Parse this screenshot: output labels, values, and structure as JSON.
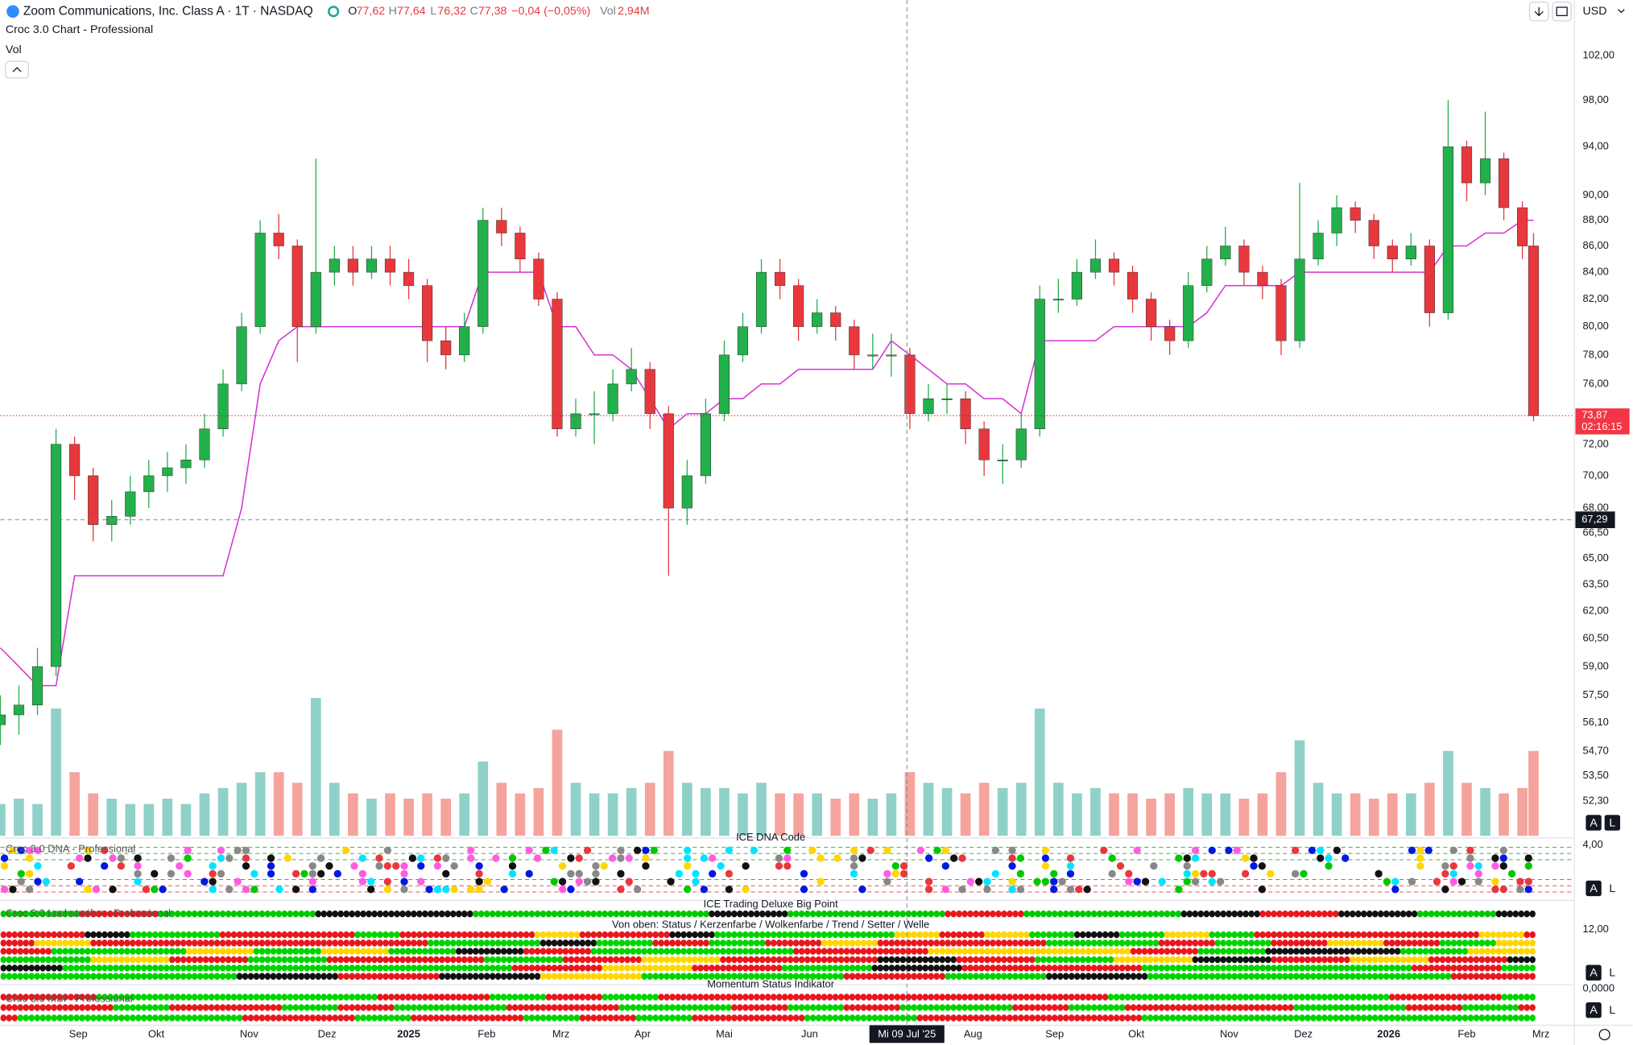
{
  "header": {
    "symbol": "Zoom Communications, Inc. Class A · 1T · NASDAQ",
    "ohlc": [
      {
        "key": "O",
        "text": "77,62"
      },
      {
        "key": "H",
        "text": "77,64"
      },
      {
        "key": "L",
        "text": "76,32"
      },
      {
        "key": "C",
        "text": "77,38"
      }
    ],
    "change": "−0,04 (−0,05%)",
    "vol_key": "Vol",
    "vol_text": "2,94M",
    "indicator": "Croc 3.0 Chart - Professional",
    "volume_label": "Vol",
    "currency": "USD"
  },
  "indicators": {
    "dna_title": "Croc 3.0 DNA - Professional",
    "dna_subtitle": "ICE DNA Code",
    "dna_scale": "4,00",
    "big_point": "ICE Trading Deluxe Big Point",
    "lochstreifen": "Croc 3.0 Lochstreifen - Professional",
    "rows_note": "Von oben: Status / Kerzenfarbe / Wolkenfarbe / Trend / Setter / Welle",
    "loch_scale": "12,00",
    "momentum": "Momentum Status Indikator",
    "msi_title": "Croc 3.0 MSI - Professional",
    "msi_scale": "0,0000",
    "button_a": "A",
    "button_l": "L"
  },
  "chart_data": {
    "type": "candlestick",
    "log_scale": true,
    "grid": false,
    "up_color": "#22b04b",
    "down_color": "#e8383d",
    "volume_up_color": "#8fd1c8",
    "volume_down_color": "#f5a39d",
    "xlim": [
      0,
      424
    ],
    "xticks": [
      {
        "value": 21,
        "label": "Sep"
      },
      {
        "value": 42,
        "label": "Okt"
      },
      {
        "value": 67,
        "label": "Nov"
      },
      {
        "value": 88,
        "label": "Dez"
      },
      {
        "value": 110,
        "label": "2025"
      },
      {
        "value": 131,
        "label": "Feb"
      },
      {
        "value": 151,
        "label": "Mrz"
      },
      {
        "value": 173,
        "label": "Apr"
      },
      {
        "value": 195,
        "label": "Mai"
      },
      {
        "value": 218,
        "label": "Jun"
      },
      {
        "value": 262,
        "label": "Aug"
      },
      {
        "value": 284,
        "label": "Sep"
      },
      {
        "value": 306,
        "label": "Okt"
      },
      {
        "value": 331,
        "label": "Nov"
      },
      {
        "value": 351,
        "label": "Dez"
      },
      {
        "value": 374,
        "label": "2026"
      },
      {
        "value": 395,
        "label": "Feb"
      },
      {
        "value": 415,
        "label": "Mrz"
      }
    ],
    "ylim": [
      50.7,
      107.2
    ],
    "yticks": [
      {
        "value": 102,
        "label": "102,00"
      },
      {
        "value": 98,
        "label": "98,00"
      },
      {
        "value": 94,
        "label": "94,00"
      },
      {
        "value": 90,
        "label": "90,00"
      },
      {
        "value": 88,
        "label": "88,00"
      },
      {
        "value": 86,
        "label": "86,00"
      },
      {
        "value": 84,
        "label": "84,00"
      },
      {
        "value": 82,
        "label": "82,00"
      },
      {
        "value": 80,
        "label": "80,00"
      },
      {
        "value": 78,
        "label": "78,00"
      },
      {
        "value": 76,
        "label": "76,00"
      },
      {
        "value": 72,
        "label": "72,00"
      },
      {
        "value": 70,
        "label": "70,00"
      },
      {
        "value": 68,
        "label": "68,00"
      },
      {
        "value": 66.5,
        "label": "66,50"
      },
      {
        "value": 65,
        "label": "65,00"
      },
      {
        "value": 63.5,
        "label": "63,50"
      },
      {
        "value": 62,
        "label": "62,00"
      },
      {
        "value": 60.5,
        "label": "60,50"
      },
      {
        "value": 59,
        "label": "59,00"
      },
      {
        "value": 57.5,
        "label": "57,50"
      },
      {
        "value": 56.1,
        "label": "56,10"
      },
      {
        "value": 54.7,
        "label": "54,70"
      },
      {
        "value": 53.5,
        "label": "53,50"
      },
      {
        "value": 52.3,
        "label": "52,30"
      }
    ],
    "x": [
      0,
      5,
      10,
      15,
      20,
      25,
      30,
      35,
      40,
      45,
      50,
      55,
      60,
      65,
      70,
      75,
      80,
      85,
      90,
      95,
      100,
      105,
      110,
      115,
      120,
      125,
      130,
      135,
      140,
      145,
      150,
      155,
      160,
      165,
      170,
      175,
      180,
      185,
      190,
      195,
      200,
      205,
      210,
      215,
      220,
      225,
      230,
      235,
      240,
      245,
      250,
      255,
      260,
      265,
      270,
      275,
      280,
      285,
      290,
      295,
      300,
      305,
      310,
      315,
      320,
      325,
      330,
      335,
      340,
      345,
      350,
      355,
      360,
      365,
      370,
      375,
      380,
      385,
      390,
      395,
      400,
      405,
      410,
      413
    ],
    "open": [
      56,
      56.5,
      57,
      59,
      72,
      70,
      67,
      67.5,
      69,
      70,
      70.5,
      71,
      73,
      76,
      80,
      87,
      86,
      80,
      84,
      85,
      84,
      85,
      84,
      83,
      79,
      78,
      80,
      88,
      87,
      85,
      82,
      73,
      74,
      74,
      76,
      77,
      74,
      68,
      70,
      74,
      78,
      80,
      84,
      83,
      80,
      81,
      80,
      78,
      78,
      78,
      74,
      75,
      75,
      73,
      71,
      71,
      73,
      82,
      82,
      84,
      85,
      84,
      82,
      80,
      79,
      83,
      85,
      86,
      84,
      83,
      79,
      85,
      87,
      89,
      88,
      86,
      85,
      86,
      81,
      94,
      91,
      93,
      89,
      86
    ],
    "high": [
      57.5,
      58,
      60,
      73,
      72.5,
      70.5,
      68.5,
      70,
      71,
      71.5,
      72,
      74,
      77,
      81,
      88,
      88.5,
      86.5,
      93,
      86,
      86,
      86,
      86,
      85,
      83.5,
      80,
      81,
      89,
      89,
      87.5,
      85.5,
      82.5,
      75,
      75.5,
      77,
      78.5,
      77.5,
      74.5,
      71,
      75,
      79,
      81,
      85,
      85,
      83.5,
      82,
      81.5,
      80.5,
      79.5,
      79.5,
      78.5,
      76,
      76,
      75.5,
      73.5,
      72,
      74,
      83,
      83.5,
      85,
      86.5,
      85.5,
      84.5,
      82.5,
      80.5,
      84,
      86,
      87.5,
      86.5,
      84.5,
      83.5,
      91,
      88,
      90,
      89.5,
      88.5,
      86.5,
      87,
      86.5,
      98,
      94.5,
      97,
      93.5,
      89.5,
      87
    ],
    "low": [
      55,
      55.5,
      56.5,
      58.5,
      68.5,
      66,
      66,
      67,
      68,
      69,
      69.5,
      70.5,
      72.5,
      75.5,
      79.5,
      85,
      77.5,
      79.5,
      83,
      83,
      83.5,
      83,
      82,
      77.5,
      77,
      77.5,
      79.5,
      86,
      84,
      81.5,
      72.5,
      72.5,
      72,
      73.5,
      75.5,
      73,
      64,
      67,
      69.5,
      73.5,
      77.5,
      79.5,
      82,
      79,
      79.5,
      79,
      77,
      77,
      76.5,
      73,
      73.5,
      74,
      72,
      70,
      69.5,
      70.5,
      72.5,
      81,
      81.5,
      83.5,
      83,
      81,
      79,
      78,
      78.5,
      82.5,
      84.5,
      83,
      82,
      78,
      78.5,
      84.5,
      86,
      87,
      85,
      84,
      84.5,
      80,
      80.5,
      89.5,
      90,
      88,
      85,
      73.5
    ],
    "close": [
      56.5,
      57,
      59,
      72,
      70,
      67,
      67.5,
      69,
      70,
      70.5,
      71,
      73,
      76,
      80,
      87,
      86,
      80,
      84,
      85,
      84,
      85,
      84,
      83,
      79,
      78,
      80,
      88,
      87,
      85,
      82,
      73,
      74,
      74,
      76,
      77,
      74,
      68,
      70,
      74,
      78,
      80,
      84,
      83,
      80,
      81,
      80,
      78,
      78,
      78,
      74,
      75,
      75,
      73,
      71,
      71,
      73,
      82,
      82,
      84,
      85,
      84,
      82,
      80,
      79,
      83,
      85,
      86,
      84,
      83,
      79,
      85,
      87,
      89,
      88,
      86,
      85,
      86,
      81,
      94,
      91,
      93,
      89,
      86,
      73.87
    ],
    "volume": [
      3,
      3.5,
      3,
      12,
      6,
      4,
      3.5,
      3,
      3,
      3.5,
      3,
      4,
      4.5,
      5,
      6,
      6,
      5,
      13,
      5,
      4,
      3.5,
      4,
      3.5,
      4,
      3.5,
      4,
      7,
      5,
      4,
      4.5,
      10,
      5,
      4,
      4,
      4.5,
      5,
      8,
      5,
      4.5,
      4.5,
      4,
      5,
      4,
      4,
      4,
      3.5,
      4,
      3.5,
      4,
      6,
      5,
      4.5,
      4,
      5,
      4.5,
      5,
      12,
      5,
      4,
      4.5,
      4,
      4,
      3.5,
      4,
      4.5,
      4,
      4,
      3.5,
      4,
      6,
      9,
      5,
      4,
      4,
      3.5,
      4,
      4,
      5,
      8,
      5,
      4.5,
      4,
      4.5,
      8
    ],
    "vlim": [
      0,
      16
    ],
    "series": [
      {
        "color": "#d633d6",
        "values": [
          60,
          59,
          58,
          58,
          64,
          64,
          64,
          64,
          64,
          64,
          64,
          64,
          64,
          68,
          76,
          79,
          80,
          80,
          80,
          80,
          80,
          80,
          80,
          80,
          80,
          80,
          84,
          84,
          84,
          84,
          80,
          80,
          78,
          78,
          77,
          75,
          73,
          74,
          74,
          75,
          75,
          76,
          76,
          77,
          77,
          77,
          77,
          77,
          79,
          78,
          77,
          76,
          76,
          75,
          75,
          74,
          79,
          79,
          79,
          79,
          80,
          80,
          80,
          80,
          80,
          81,
          83,
          83,
          83,
          83,
          84,
          84,
          84,
          84,
          84,
          84,
          84,
          84,
          86,
          86,
          87,
          87,
          88,
          88
        ]
      }
    ],
    "last_price": 73.87,
    "last_label": "73,87",
    "countdown": "02:16:15",
    "crosshair": {
      "x": 244.2,
      "x_label": "Mi 09 Jul '25",
      "y": 67.29,
      "y_label": "67,29"
    }
  }
}
